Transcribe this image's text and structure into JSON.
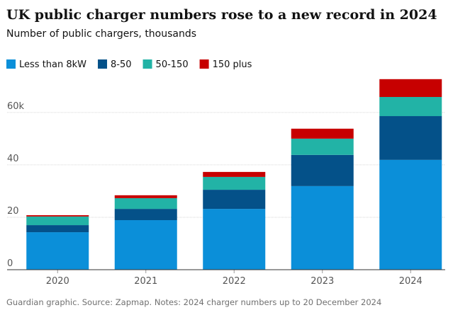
{
  "chart_data": {
    "type": "stacked_bar",
    "title": "UK public charger numbers rose to a new record in 2024",
    "subtitle": "Number of public chargers, thousands",
    "source": "Guardian graphic. Source: Zapmap. Notes: 2024 charger numbers up to 20 December 2024",
    "categories": [
      "2020",
      "2021",
      "2022",
      "2023",
      "2024"
    ],
    "series": [
      {
        "name": "Less than 8kW",
        "color": "#0b8fd9",
        "values": [
          14.3,
          18.9,
          23.2,
          31.9,
          41.9
        ]
      },
      {
        "name": "8-50",
        "color": "#045189",
        "values": [
          2.7,
          4.3,
          7.3,
          11.9,
          16.7
        ]
      },
      {
        "name": "50-150",
        "color": "#22b3a6",
        "values": [
          3.3,
          4.1,
          4.9,
          6.2,
          7.3
        ]
      },
      {
        "name": "150 plus",
        "color": "#c70000",
        "values": [
          0.5,
          1.1,
          1.9,
          3.8,
          6.8
        ]
      }
    ],
    "ylim": [
      0,
      74
    ],
    "yticks": [
      0,
      20,
      40,
      {
        "value": 60,
        "label": "60k"
      }
    ],
    "grid": true
  }
}
